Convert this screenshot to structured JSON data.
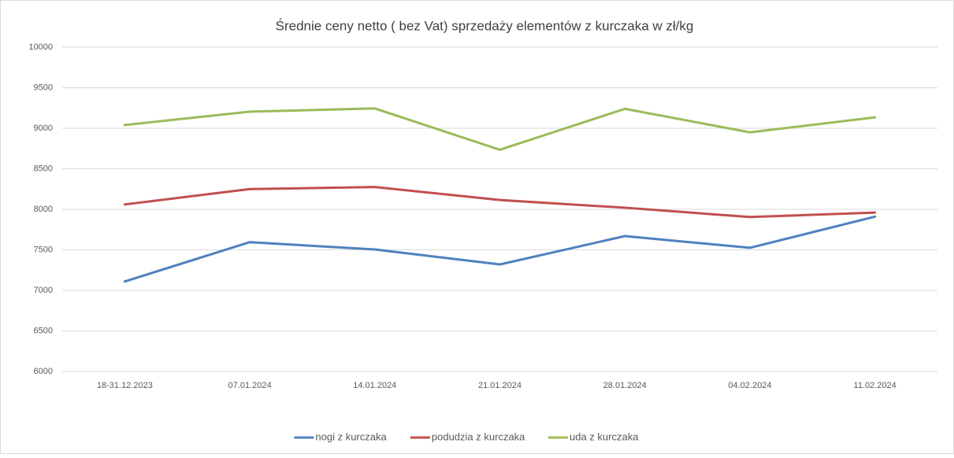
{
  "chart_data": {
    "type": "line",
    "title": "Średnie ceny netto ( bez Vat) sprzedaży elementów z kurczaka w zł/kg",
    "categories": [
      "18-31.12.2023",
      "07.01.2024",
      "14.01.2024",
      "21.01.2024",
      "28.01.2024",
      "04.02.2024",
      "11.02.2024"
    ],
    "series": [
      {
        "name": "nogi z kurczaka",
        "color": "#4f81bd",
        "values": [
          7110,
          7595,
          7505,
          7320,
          7670,
          7525,
          7910
        ]
      },
      {
        "name": "podudzia z kurczaka",
        "color": "#c0504d",
        "values": [
          8060,
          8250,
          8275,
          8115,
          8020,
          7905,
          7960
        ]
      },
      {
        "name": "uda z kurczaka",
        "color": "#9bbb59",
        "values": [
          9040,
          9205,
          9245,
          8735,
          9240,
          8950,
          9135
        ]
      }
    ],
    "ylim": [
      6000,
      10000
    ],
    "yticks": [
      6000,
      6500,
      7000,
      7500,
      8000,
      8500,
      9000,
      9500,
      10000
    ],
    "grid": true,
    "legend": "bottom"
  }
}
